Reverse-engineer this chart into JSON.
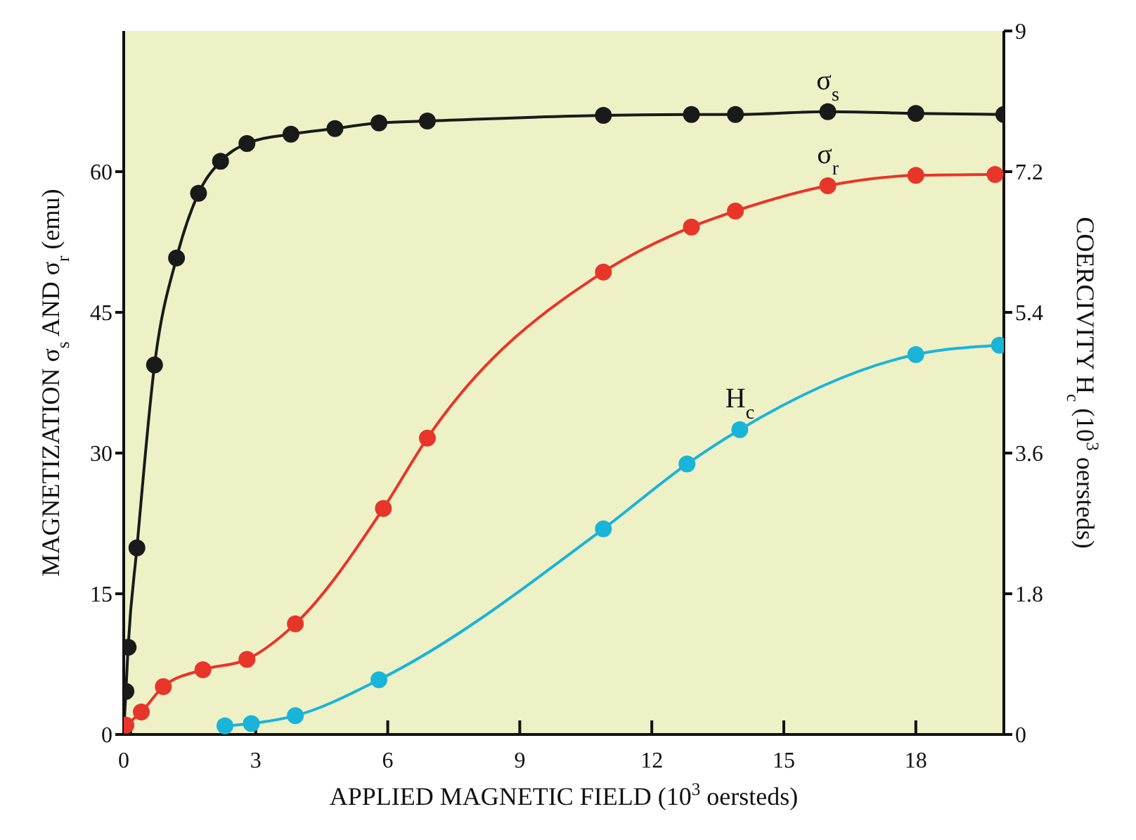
{
  "chart_data": {
    "type": "line",
    "xlabel": "APPLIED MAGNETIC FIELD (10$^{3}$ oersteds)",
    "ylabel": "MAGNETIZATION σ$_{s}$ AND σ$_{r}$ (emu)",
    "y2label": "COERCIVITY H$_{c}$ (10$^{3}$ oersteds)",
    "xlim": [
      0,
      20
    ],
    "xticks": [
      0,
      3,
      6,
      9,
      12,
      15,
      18
    ],
    "ylim": [
      0,
      75
    ],
    "yticks": [
      0,
      15,
      30,
      45,
      60
    ],
    "y2lim": [
      0,
      9
    ],
    "y2ticks": [
      0,
      1.8,
      3.6,
      5.4,
      7.2,
      9
    ],
    "marker": "circle",
    "line_style": "solid",
    "legend": false,
    "series": [
      {
        "name": "σ$_{s}$",
        "color": "#1a1a1a",
        "x": [
          0,
          0.05,
          0.1,
          0.3,
          0.7,
          1.2,
          1.7,
          2.2,
          2.8,
          3.8,
          4.8,
          5.8,
          6.9,
          10.9,
          12.9,
          13.9,
          16,
          18,
          20
        ],
        "values": [
          0.3,
          4.6,
          9.3,
          19.9,
          39.4,
          50.8,
          57.7,
          61.1,
          63.0,
          64.0,
          64.6,
          65.2,
          65.4,
          66.0,
          66.1,
          66.1,
          66.4,
          66.2,
          66.1
        ]
      },
      {
        "name": "σ$_{r}$",
        "color": "#e8352a",
        "x": [
          0.05,
          0.4,
          0.9,
          1.8,
          2.8,
          3.9,
          5.9,
          6.9,
          10.9,
          12.9,
          13.9,
          16,
          18,
          19.8
        ],
        "values": [
          1.0,
          2.4,
          5.1,
          6.9,
          8.0,
          11.8,
          24.1,
          31.6,
          49.3,
          54.1,
          55.8,
          58.5,
          59.6,
          59.7
        ]
      },
      {
        "name": "H$_{c}$",
        "color": "#1ab4d8",
        "axis": "y2",
        "x": [
          2.3,
          2.9,
          3.9,
          5.8,
          10.9,
          12.8,
          14,
          18,
          19.9
        ],
        "values": [
          0.11,
          0.14,
          0.24,
          0.7,
          2.63,
          3.46,
          3.9,
          4.86,
          4.98
        ]
      }
    ]
  }
}
